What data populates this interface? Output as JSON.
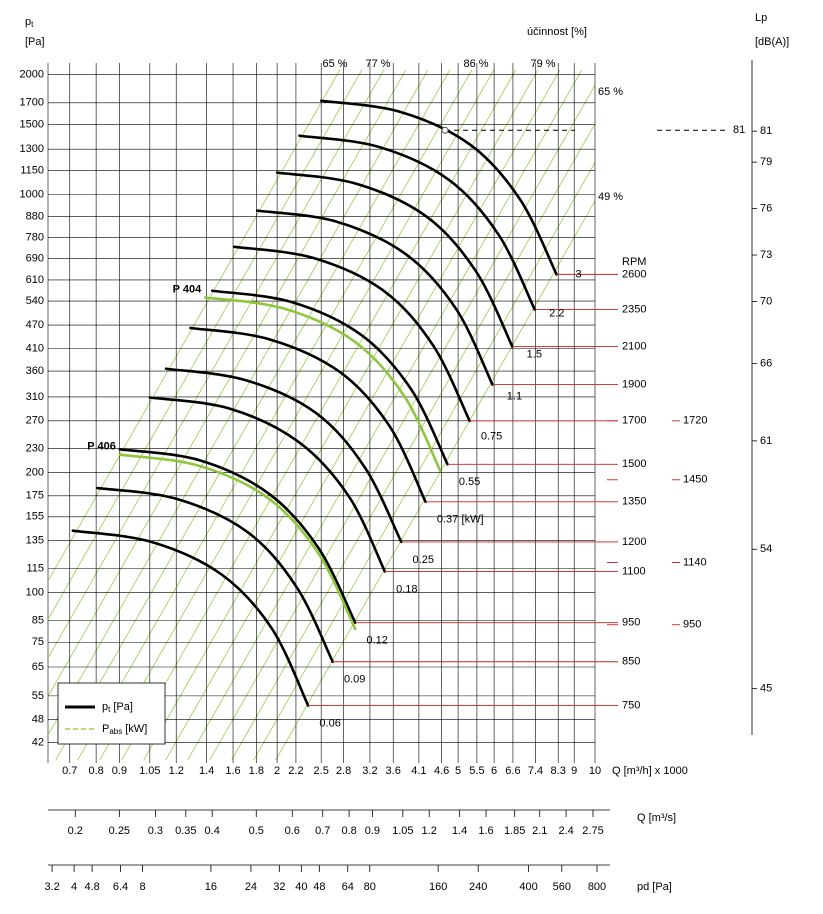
{
  "chart_data": {
    "type": "line",
    "y_label_main": "p",
    "y_label_sub": "t",
    "y_unit": "[Pa]",
    "x_label": "Q [m³/h] x 1000",
    "log_x": true,
    "log_y": true,
    "grid": true,
    "xlim": [
      0.627,
      10
    ],
    "ylim": [
      37.3,
      2140
    ],
    "xticks": [
      0.7,
      0.8,
      0.9,
      1.05,
      1.2,
      1.4,
      1.6,
      1.8,
      2,
      2.2,
      2.5,
      2.8,
      3.2,
      3.6,
      4.1,
      4.6,
      5,
      5.5,
      6,
      6.6,
      7.4,
      8.3,
      9,
      10
    ],
    "yticks": [
      2000,
      1700,
      1500,
      1300,
      1150,
      1000,
      880,
      780,
      690,
      610,
      540,
      470,
      410,
      360,
      310,
      270,
      230,
      200,
      175,
      155,
      135,
      115,
      100,
      85,
      75,
      65,
      55,
      48,
      42
    ],
    "efficiency_title": "účinnost [%]",
    "efficiency_top_labels": [
      "65 %",
      "77 %",
      "86 %",
      "79 %"
    ],
    "efficiency_side_labels": [
      "65 %",
      "49 %"
    ],
    "rpm_title": "RPM",
    "power_unit": "[kW]",
    "series": [
      {
        "rpm": 2600,
        "power": 3,
        "color": "#000000",
        "x": [
          2.5,
          3.73,
          5.32,
          6.85,
          8.23
        ],
        "values": [
          1720,
          1613,
          1333,
          970,
          630
        ]
      },
      {
        "rpm": 2350,
        "power": 2.2,
        "color": "#000000",
        "x": [
          2.24,
          3.34,
          4.77,
          6.14,
          7.37
        ],
        "values": [
          1405,
          1318,
          1089,
          792,
          514
        ]
      },
      {
        "rpm": 2100,
        "power": 1.5,
        "color": "#000000",
        "x": [
          2.0,
          2.98,
          4.26,
          5.48,
          6.58
        ],
        "values": [
          1135,
          1065,
          880,
          640,
          415
        ]
      },
      {
        "rpm": 1900,
        "power": 1.1,
        "color": "#000000",
        "x": [
          1.81,
          2.7,
          3.85,
          4.96,
          5.95
        ],
        "values": [
          911,
          855,
          706,
          514,
          333
        ]
      },
      {
        "rpm": 1700,
        "power": 0.75,
        "color": "#000000",
        "x": [
          1.61,
          2.4,
          3.43,
          4.41,
          5.3
        ],
        "values": [
          739,
          693,
          573,
          417,
          270
        ]
      },
      {
        "rpm": 1500,
        "power": 0.55,
        "color": "#000000",
        "x": [
          1.44,
          2.15,
          3.06,
          3.95,
          4.74
        ],
        "values": [
          573,
          537,
          444,
          323,
          210
        ]
      },
      {
        "rpm": 1350,
        "power": 0.37,
        "color": "#000000",
        "x": [
          1.29,
          1.92,
          2.75,
          3.54,
          4.24
        ],
        "values": [
          462,
          433,
          358,
          261,
          169
        ]
      },
      {
        "rpm": 1200,
        "power": 0.25,
        "color": "#000000",
        "x": [
          1.14,
          1.7,
          2.43,
          3.12,
          3.75
        ],
        "values": [
          365,
          342,
          283,
          206,
          134
        ]
      },
      {
        "rpm": 1100,
        "power": 0.18,
        "color": "#000000",
        "x": [
          1.05,
          1.57,
          2.23,
          2.88,
          3.45
        ],
        "values": [
          309,
          290,
          239,
          174,
          113
        ]
      },
      {
        "rpm": 950,
        "power": 0.12,
        "color": "#000000",
        "x": [
          0.902,
          1.35,
          1.92,
          2.47,
          2.97
        ],
        "values": [
          229,
          215,
          177,
          129,
          84
        ]
      },
      {
        "rpm": 850,
        "power": 0.09,
        "color": "#000000",
        "x": [
          0.806,
          1.2,
          1.72,
          2.21,
          2.65
        ],
        "values": [
          183,
          172,
          142,
          103,
          67
        ]
      },
      {
        "rpm": 750,
        "power": 0.06,
        "color": "#000000",
        "x": [
          0.711,
          1.06,
          1.51,
          1.95,
          2.34
        ],
        "values": [
          143,
          134,
          111,
          81,
          52
        ]
      }
    ],
    "models": [
      {
        "name": "P 404",
        "color": "#8dc63f",
        "x": [
          1.39,
          2.07,
          2.96,
          3.81,
          4.57
        ],
        "values": [
          551,
          517,
          427,
          311,
          202
        ]
      },
      {
        "name": "P 406",
        "color": "#8dc63f",
        "x": [
          0.902,
          1.35,
          1.92,
          2.47,
          2.97
        ],
        "values": [
          222,
          208,
          172,
          125,
          81
        ]
      }
    ],
    "rpm2ticks": [
      {
        "value": 270,
        "label": "1720"
      },
      {
        "value": 192,
        "label": "1450"
      },
      {
        "value": 119,
        "label": "1140"
      },
      {
        "value": 83,
        "label": "950"
      }
    ],
    "operating_point": {
      "x": 4.68,
      "y": 1450,
      "lp": 81
    },
    "x2_label": "Q  [m³/s]",
    "x2lim": [
      0.1742,
      2.778
    ],
    "x2ticks": [
      0.2,
      0.25,
      0.3,
      0.35,
      0.4,
      0.5,
      0.6,
      0.7,
      0.8,
      0.9,
      1.05,
      1.2,
      1.4,
      1.6,
      1.85,
      2.1,
      2.4,
      2.75
    ],
    "x3_label": "pd  [Pa]",
    "x3lim": [
      3.07,
      784
    ],
    "x3ticks": [
      3.2,
      4,
      4.8,
      6.4,
      8,
      16,
      24,
      32,
      40,
      48,
      64,
      80,
      160,
      240,
      400,
      560,
      800
    ],
    "lp_title": "Lp",
    "lp_unit": "[dB(A)]",
    "lp_lim": [
      40.2,
      85.4
    ],
    "lp_ticks": [
      81,
      79,
      76,
      73,
      70,
      66,
      61,
      54,
      45
    ],
    "legend": [
      {
        "main": "p",
        "sub": "t",
        "unit": "[Pa]",
        "color": "#000000"
      },
      {
        "main": "P",
        "sub": "abs",
        "unit": "[kW]",
        "color": "#8dc63f"
      }
    ]
  }
}
